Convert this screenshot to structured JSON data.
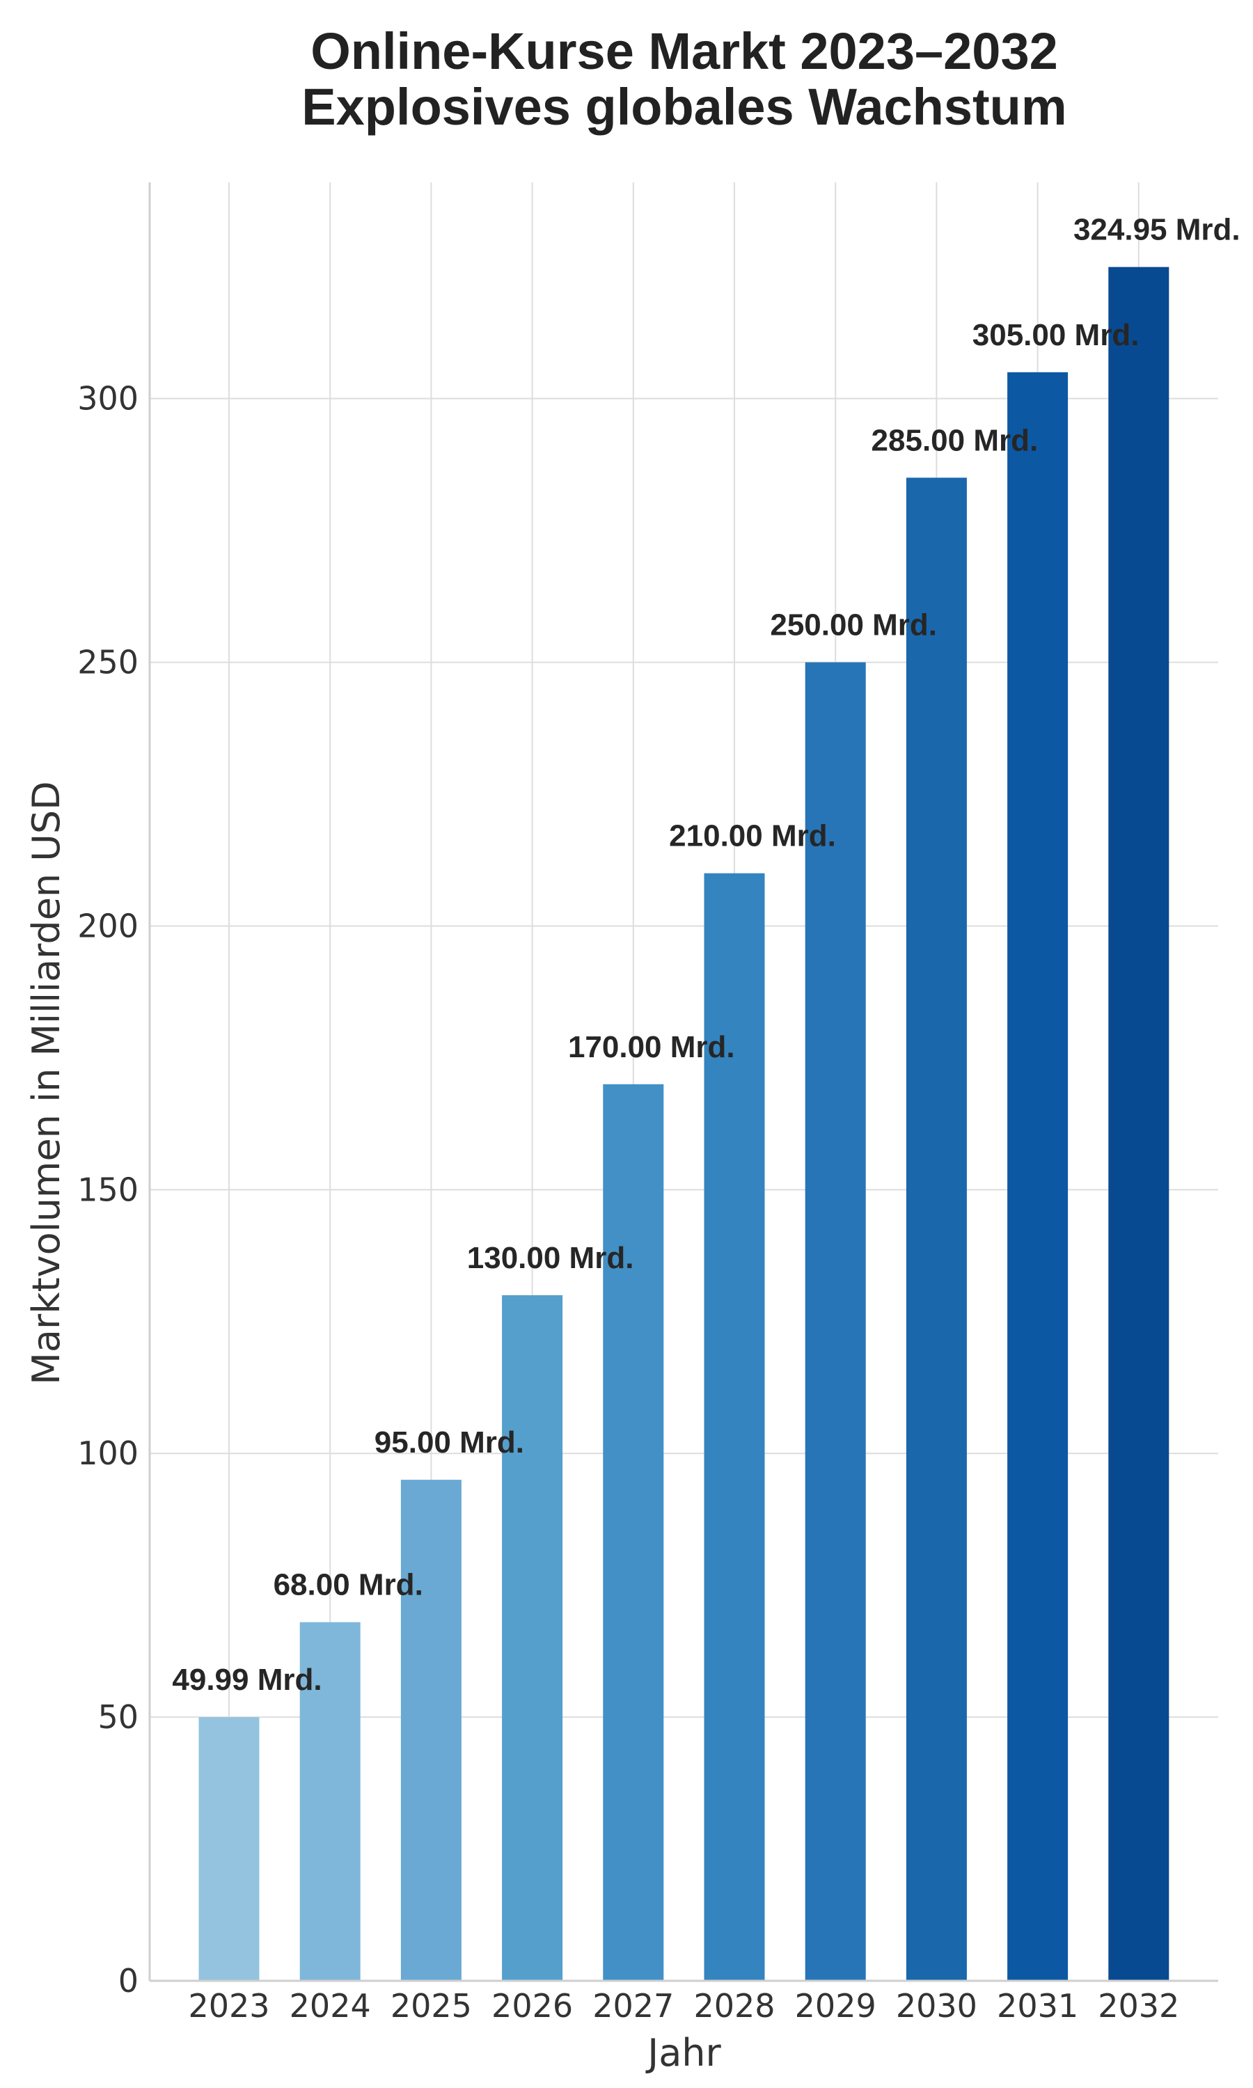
{
  "chart_data": {
    "type": "bar",
    "title": "Online-Kurse Markt 2023–2032",
    "subtitle": "Explosives globales Wachstum",
    "xlabel": "Jahr",
    "ylabel": "Marktvolumen in Milliarden USD",
    "categories": [
      "2023",
      "2024",
      "2025",
      "2026",
      "2027",
      "2028",
      "2029",
      "2030",
      "2031",
      "2032"
    ],
    "values": [
      49.99,
      68.0,
      95.0,
      130.0,
      170.0,
      210.0,
      250.0,
      285.0,
      305.0,
      324.95
    ],
    "data_labels": [
      "49.99 Mrd.",
      "68.00 Mrd.",
      "95.00 Mrd.",
      "130.00 Mrd.",
      "170.00 Mrd.",
      "210.00 Mrd.",
      "250.00 Mrd.",
      "285.00 Mrd.",
      "305.00 Mrd.",
      "324.95 Mrd."
    ],
    "ylim": [
      0,
      341
    ],
    "yticks": [
      0,
      50,
      100,
      150,
      200,
      250,
      300
    ],
    "grid": true,
    "legend": "none",
    "colors": [
      "#93c3df",
      "#7fb7da",
      "#69a9d3",
      "#559fcd",
      "#4290c6",
      "#3484c0",
      "#2775b6",
      "#1a67ac",
      "#0d58a2",
      "#084a91"
    ]
  }
}
